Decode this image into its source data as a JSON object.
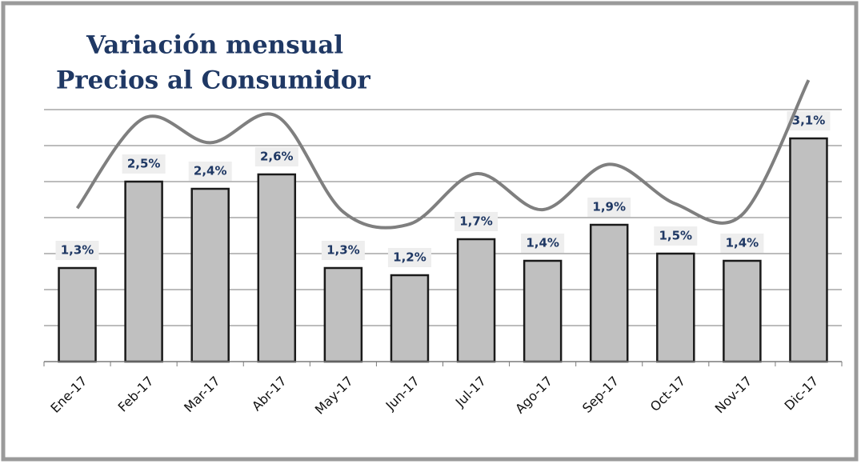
{
  "chart_data": {
    "type": "bar",
    "title": [
      "Variación mensual",
      "Precios al Consumidor"
    ],
    "categories": [
      "Ene-17",
      "Feb-17",
      "Mar-17",
      "Abr-17",
      "May-17",
      "Jun-17",
      "Jul-17",
      "Ago-17",
      "Sep-17",
      "Oct-17",
      "Nov-17",
      "Dic-17"
    ],
    "series": [
      {
        "type": "bar",
        "color": "#c0c0c0",
        "values": [
          1.3,
          2.5,
          2.4,
          2.6,
          1.3,
          1.2,
          1.7,
          1.4,
          1.9,
          1.5,
          1.4,
          3.1
        ],
        "value_labels": [
          "1,3%",
          "2,5%",
          "2,4%",
          "2,6%",
          "1,3%",
          "1,2%",
          "1,7%",
          "1,4%",
          "1,9%",
          "1,5%",
          "1,4%",
          "3,1%"
        ]
      },
      {
        "type": "line",
        "color": "#7f7f7f",
        "values": [
          2.13,
          3.38,
          3.04,
          3.41,
          2.08,
          1.91,
          2.61,
          2.11,
          2.74,
          2.19,
          2.04,
          3.91
        ]
      }
    ],
    "ylim": [
      0,
      3.5
    ],
    "yticks": [
      0,
      0.5,
      1,
      1.5,
      2,
      2.5,
      3,
      3.5
    ],
    "grid": true
  }
}
